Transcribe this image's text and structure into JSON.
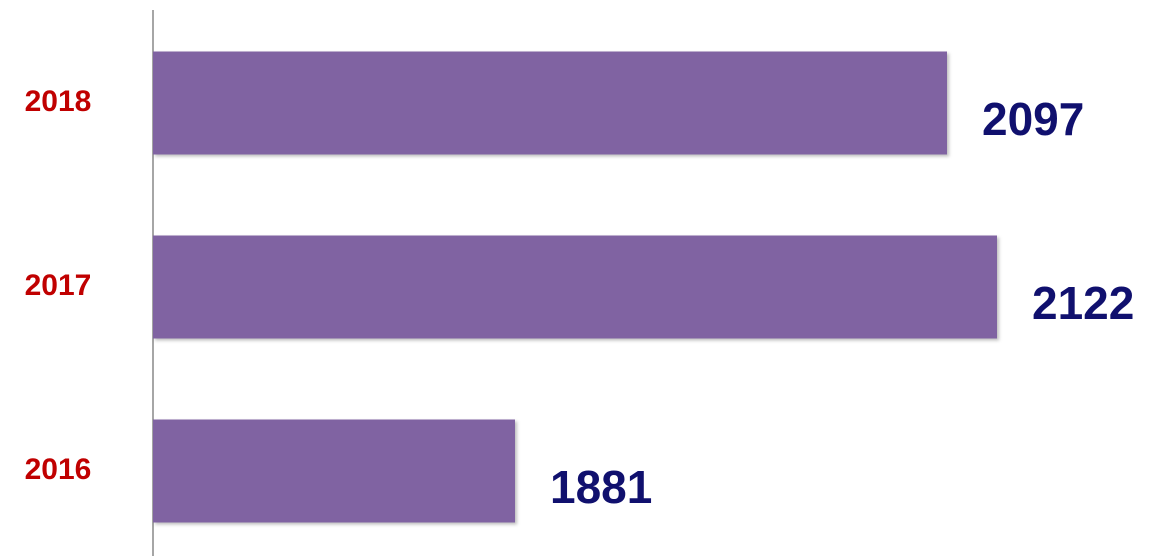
{
  "chart_data": {
    "type": "hbar",
    "categories": [
      "2018",
      "2017",
      "2016"
    ],
    "values": [
      2097,
      2122,
      1881
    ],
    "color": "#8064a2",
    "category_color": "#c00000",
    "value_label_color": "#10106e",
    "xlim": [
      1700,
      2150
    ]
  }
}
